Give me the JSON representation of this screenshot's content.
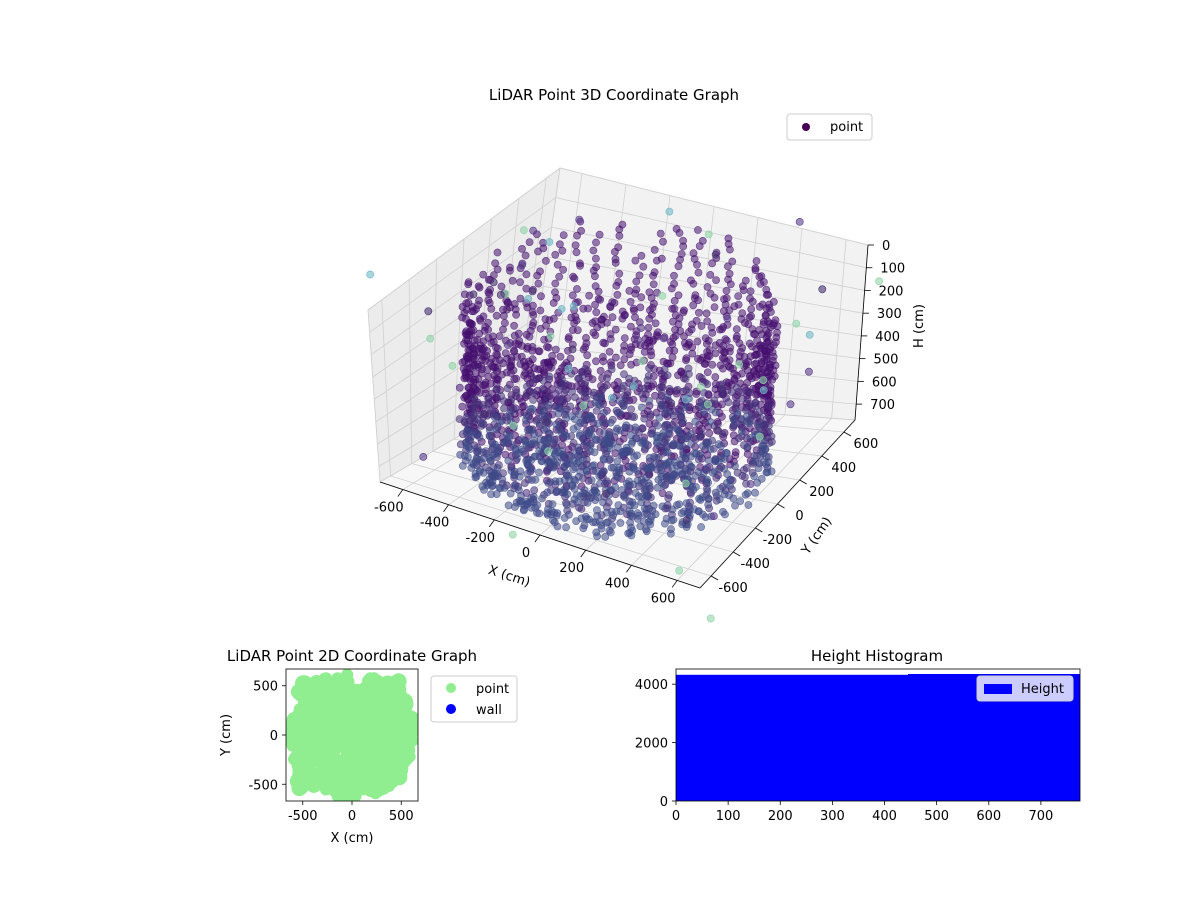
{
  "chart_data": [
    {
      "type": "scatter3d",
      "title": "LiDAR Point 3D Coordinate Graph",
      "xlabel": "X (cm)",
      "ylabel": "Y (cm)",
      "zlabel": "H (cm)",
      "x_ticks": [
        "-600",
        "-400",
        "-200",
        "0",
        "200",
        "400",
        "600"
      ],
      "y_ticks": [
        "-600",
        "-400",
        "-200",
        "0",
        "200",
        "400",
        "600"
      ],
      "z_ticks": [
        "0",
        "100",
        "200",
        "300",
        "400",
        "500",
        "600",
        "700"
      ],
      "xlim": [
        -700,
        700
      ],
      "ylim": [
        -700,
        700
      ],
      "zlim": [
        0,
        770
      ],
      "z_inverted": true,
      "grid": true,
      "legend": {
        "placement": "top-right",
        "entries": [
          "point"
        ]
      },
      "colormap": "viridis",
      "marker_color": "#440154",
      "description_points": "cylindrical room shell of vertical point columns radius ~600 cm, heights 0-770 cm, plus scattered outliers"
    },
    {
      "type": "scatter",
      "title": "LiDAR Point 2D Coordinate Graph",
      "xlabel": "X (cm)",
      "ylabel": "Y (cm)",
      "x_ticks": [
        "-500",
        "0",
        "500"
      ],
      "y_ticks": [
        "-500",
        "0",
        "500"
      ],
      "xlim": [
        -670,
        670
      ],
      "ylim": [
        -670,
        670
      ],
      "legend": {
        "placement": "outside-right",
        "entries": [
          "point",
          "wall"
        ]
      },
      "series": [
        {
          "name": "point",
          "color": "#90ee90"
        },
        {
          "name": "wall",
          "color": "#0000ff"
        }
      ]
    },
    {
      "type": "bar",
      "title": "Height Histogram",
      "x_ticks": [
        "0",
        "100",
        "200",
        "300",
        "400",
        "500",
        "600",
        "700"
      ],
      "y_ticks": [
        "0",
        "2000",
        "4000"
      ],
      "xlim": [
        0,
        775
      ],
      "ylim": [
        0,
        4520
      ],
      "legend": {
        "placement": "top-right",
        "entries": [
          "Height"
        ]
      },
      "series": [
        {
          "name": "Height",
          "color": "#0000ff",
          "bins": [
            {
              "x0": 0,
              "x1": 445,
              "count": 4320
            },
            {
              "x0": 445,
              "x1": 775,
              "count": 4350
            }
          ]
        }
      ]
    }
  ]
}
